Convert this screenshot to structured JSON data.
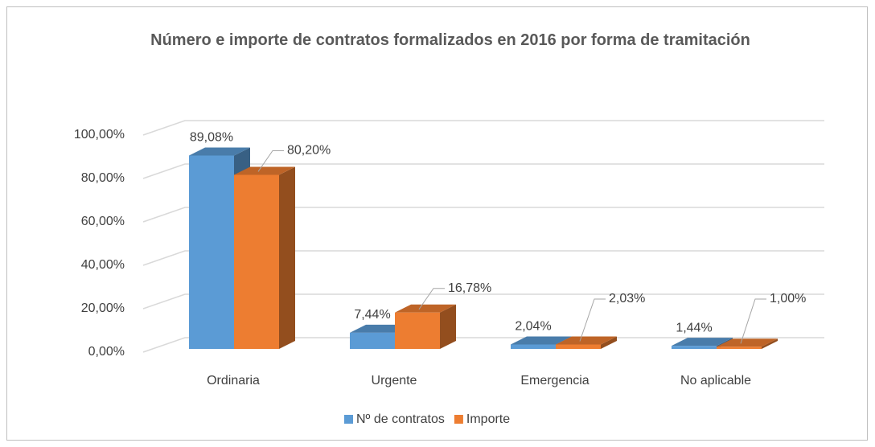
{
  "chart_data": {
    "type": "bar3d",
    "title": "Número e importe de contratos formalizados en 2016 por forma de tramitación",
    "categories": [
      "Ordinaria",
      "Urgente",
      "Emergencia",
      "No aplicable"
    ],
    "series": [
      {
        "name": "Nº de contratos",
        "color": "#5b9bd5",
        "values": [
          89.08,
          7.44,
          2.04,
          1.44
        ],
        "value_labels": [
          "89,08%",
          "7,44%",
          "2,04%",
          "1,44%"
        ]
      },
      {
        "name": "Importe",
        "color": "#ed7d31",
        "values": [
          80.2,
          16.78,
          2.03,
          1.0
        ],
        "value_labels": [
          "80,20%",
          "16,78%",
          "2,03%",
          "1,00%"
        ]
      }
    ],
    "ylim": [
      0,
      100
    ],
    "yticks": [
      {
        "value": 0,
        "label": "0,00%"
      },
      {
        "value": 20,
        "label": "20,00%"
      },
      {
        "value": 40,
        "label": "40,00%"
      },
      {
        "value": 60,
        "label": "60,00%"
      },
      {
        "value": 80,
        "label": "80,00%"
      },
      {
        "value": 100,
        "label": "100,00%"
      }
    ],
    "grid": true,
    "legend": "bottom"
  }
}
